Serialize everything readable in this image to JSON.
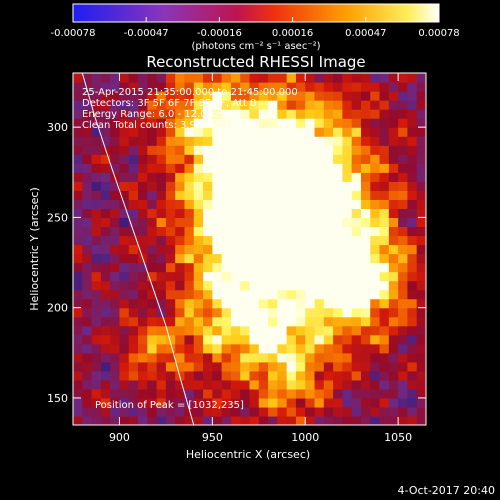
{
  "chart_data": {
    "type": "heatmap",
    "title": "Reconstructed RHESSI Image",
    "xlabel": "Heliocentric X (arcsec)",
    "ylabel": "Heliocentric Y (arcsec)",
    "xlim": [
      875,
      1065
    ],
    "ylim": [
      135,
      330
    ],
    "xticks": [
      900,
      950,
      1000,
      1050
    ],
    "yticks": [
      150,
      200,
      250,
      300
    ],
    "colorbar": {
      "ticks": [
        "-0.00078",
        "-0.00047",
        "-0.00016",
        "0.00016",
        "0.00047",
        "0.00078"
      ],
      "range": [
        -0.00078,
        0.00078
      ],
      "unit": "(photons cm⁻² s⁻¹ asec⁻²)"
    },
    "info_lines": [
      "25-Apr-2015 21:35:00.000 to 21:45:00.000",
      "Detectors: 3F 5F 6F 7F 8F 9F, Att 0",
      "Energy Range: 6.0 - 12.0 keV",
      "Clean    Total counts: 3.91e+04"
    ],
    "peak_label": "Position of Peak = [1032,235]",
    "peak_position": [
      1032,
      235
    ],
    "timestamp": "4-Oct-2017 20:40",
    "limb_curve": [
      [
        940,
        135
      ],
      [
        933,
        160
      ],
      [
        925,
        190
      ],
      [
        915,
        220
      ],
      [
        905,
        250
      ],
      [
        895,
        280
      ],
      [
        887,
        305
      ],
      [
        880,
        330
      ]
    ],
    "emission_blobs": [
      {
        "x": 985,
        "y": 285,
        "sx": 30,
        "sy": 28,
        "a": 0.75
      },
      {
        "x": 1005,
        "y": 240,
        "sx": 25,
        "sy": 32,
        "a": 0.8
      },
      {
        "x": 960,
        "y": 245,
        "sx": 22,
        "sy": 30,
        "a": 0.6
      },
      {
        "x": 1030,
        "y": 215,
        "sx": 18,
        "sy": 22,
        "a": 0.55
      },
      {
        "x": 965,
        "y": 195,
        "sx": 20,
        "sy": 20,
        "a": 0.5
      },
      {
        "x": 990,
        "y": 165,
        "sx": 18,
        "sy": 20,
        "a": 0.45
      },
      {
        "x": 945,
        "y": 310,
        "sx": 18,
        "sy": 18,
        "a": 0.4
      },
      {
        "x": 920,
        "y": 175,
        "sx": 14,
        "sy": 14,
        "a": 0.35
      }
    ]
  }
}
